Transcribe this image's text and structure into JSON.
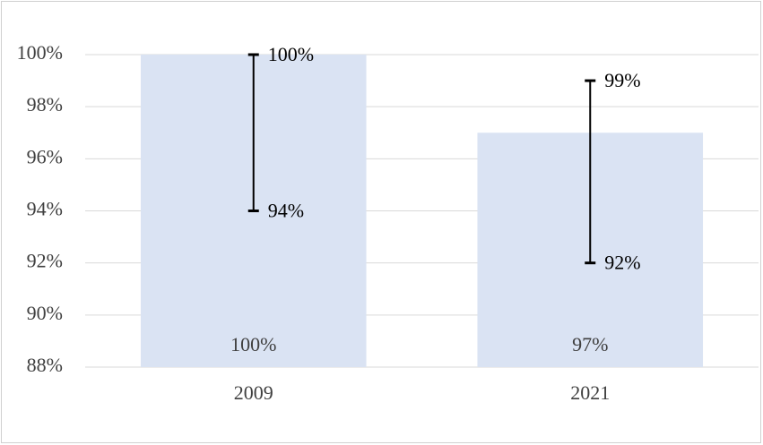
{
  "chart_data": {
    "type": "bar",
    "categories": [
      "2009",
      "2021"
    ],
    "values": [
      100,
      97
    ],
    "value_labels": [
      "100%",
      "97%"
    ],
    "color": "#dae3f3",
    "range_low": [
      94,
      92
    ],
    "range_low_labels": [
      "94%",
      "92%"
    ],
    "range_high": [
      100,
      99
    ],
    "range_high_labels": [
      "100%",
      "99%"
    ],
    "range_color": "#000000",
    "ylim": [
      88,
      100
    ],
    "yticks": [
      {
        "value": 88,
        "label": "88%"
      },
      {
        "value": 90,
        "label": "90%"
      },
      {
        "value": 92,
        "label": "92%"
      },
      {
        "value": 94,
        "label": "94%"
      },
      {
        "value": 96,
        "label": "96%"
      },
      {
        "value": 98,
        "label": "98%"
      },
      {
        "value": 100,
        "label": "100%"
      }
    ],
    "grid": true
  }
}
